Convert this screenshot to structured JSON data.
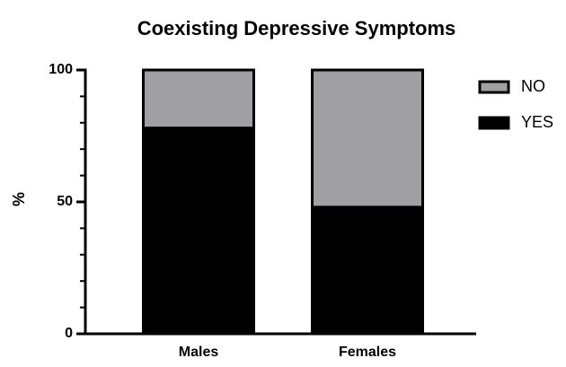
{
  "chart_data": {
    "type": "stacked_bar",
    "title": "Coexisting Depressive Symptoms",
    "y_label": "%",
    "categories": [
      "Males",
      "Females"
    ],
    "series": [
      {
        "name": "YES",
        "color": "#000000",
        "values": [
          78,
          48
        ]
      },
      {
        "name": "NO",
        "color": "#a0a0a3",
        "values": [
          22,
          52
        ]
      }
    ],
    "ylim": [
      0,
      100
    ],
    "yticks": [
      0,
      50,
      100
    ],
    "grid": false,
    "legend": "right"
  }
}
